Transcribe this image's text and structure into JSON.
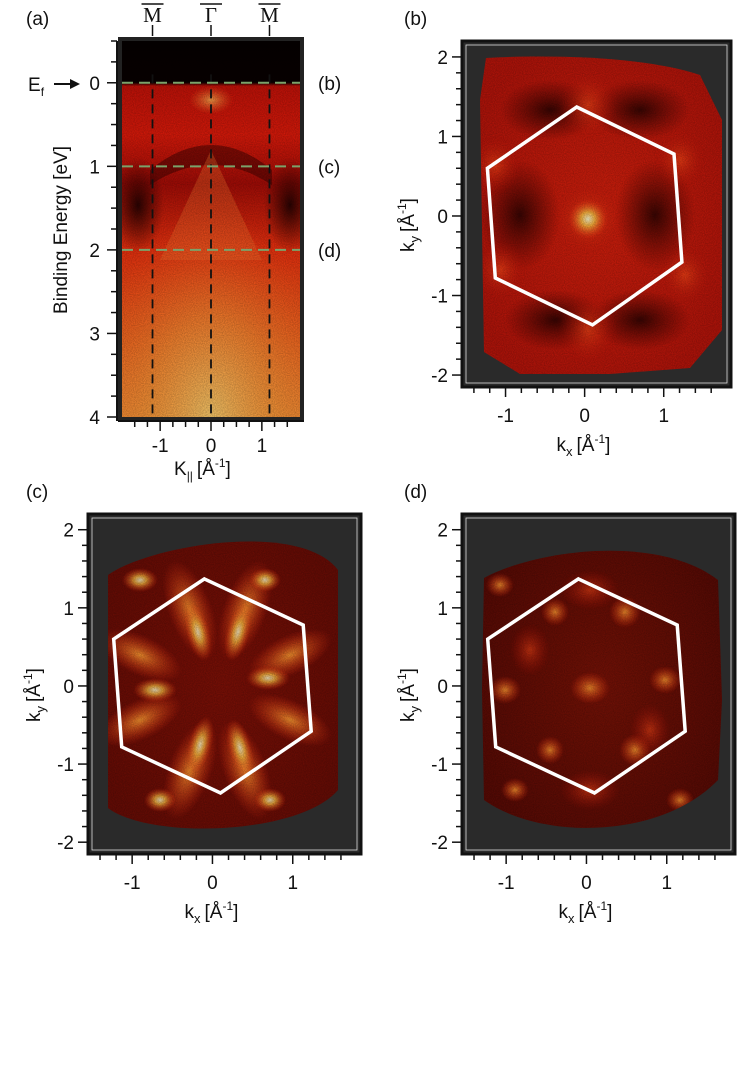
{
  "panels": {
    "a": {
      "tag": "(a)",
      "ylabel": "Binding Energy [eV]",
      "xlabel": "K",
      "xlabel_sub": "||",
      "xlabel_tail": "[Å",
      "xlabel_sup": "-1",
      "xlabel_end": "]",
      "ef_label": "E",
      "ef_sub": "f",
      "top_labels": [
        "M",
        "Γ",
        "M"
      ],
      "cut_refs": [
        "(b)",
        "(c)",
        "(d)"
      ]
    },
    "b": {
      "tag": "(b)"
    },
    "c": {
      "tag": "(c)"
    },
    "d": {
      "tag": "(d)"
    }
  },
  "map_axes": {
    "xlabel": "k",
    "xlabel_sub": "x",
    "xlabel_tail": "[Å",
    "xlabel_sup": "-1",
    "xlabel_end": "]",
    "ylabel": "k",
    "ylabel_sub": "y",
    "ylabel_tail": "[Å",
    "ylabel_sup": "-1",
    "ylabel_end": "]"
  },
  "chart_data": [
    {
      "id": "a",
      "type": "heatmap",
      "description_axes": "ARPES band map",
      "x_ticks": [
        -1,
        0,
        1
      ],
      "xlim": [
        -1.75,
        1.75
      ],
      "y_ticks": [
        0,
        1,
        2,
        3,
        4
      ],
      "ylim": [
        -0.5,
        4
      ],
      "y_inverted": true,
      "high_symmetry_points": [
        {
          "label": "M",
          "k": -1.15
        },
        {
          "label": "Γ",
          "k": 0
        },
        {
          "label": "M",
          "k": 1.15
        }
      ],
      "energy_cuts": [
        {
          "energy": 0,
          "ref": "(b)"
        },
        {
          "energy": 1,
          "ref": "(c)"
        },
        {
          "energy": 2,
          "ref": "(d)"
        }
      ],
      "colors": {
        "dash_cut": "#7aa36b",
        "dash_sym": "#111111"
      }
    },
    {
      "id": "b",
      "type": "heatmap",
      "x_ticks": [
        -1,
        0,
        1
      ],
      "y_ticks": [
        -2,
        -1,
        0,
        1,
        2
      ],
      "xlim": [
        -1.5,
        1.8
      ],
      "ylim": [
        -2.1,
        2.15
      ],
      "brillouin_zone": [
        [
          -0.1,
          1.37
        ],
        [
          1.13,
          0.78
        ],
        [
          1.23,
          -0.58
        ],
        [
          0.1,
          -1.37
        ],
        [
          -1.13,
          -0.78
        ],
        [
          -1.23,
          0.6
        ]
      ]
    },
    {
      "id": "c",
      "type": "heatmap",
      "x_ticks": [
        -1,
        0,
        1
      ],
      "y_ticks": [
        -2,
        -1,
        0,
        1,
        2
      ],
      "xlim": [
        -1.5,
        1.8
      ],
      "ylim": [
        -2.1,
        2.15
      ],
      "brillouin_zone": [
        [
          -0.1,
          1.37
        ],
        [
          1.13,
          0.78
        ],
        [
          1.23,
          -0.58
        ],
        [
          0.1,
          -1.37
        ],
        [
          -1.13,
          -0.78
        ],
        [
          -1.23,
          0.6
        ]
      ]
    },
    {
      "id": "d",
      "type": "heatmap",
      "x_ticks": [
        -1,
        0,
        1
      ],
      "y_ticks": [
        -2,
        -1,
        0,
        1,
        2
      ],
      "xlim": [
        -1.5,
        1.8
      ],
      "ylim": [
        -2.1,
        2.15
      ],
      "brillouin_zone": [
        [
          -0.1,
          1.37
        ],
        [
          1.13,
          0.78
        ],
        [
          1.23,
          -0.58
        ],
        [
          0.1,
          -1.37
        ],
        [
          -1.13,
          -0.78
        ],
        [
          -1.23,
          0.6
        ]
      ]
    }
  ]
}
